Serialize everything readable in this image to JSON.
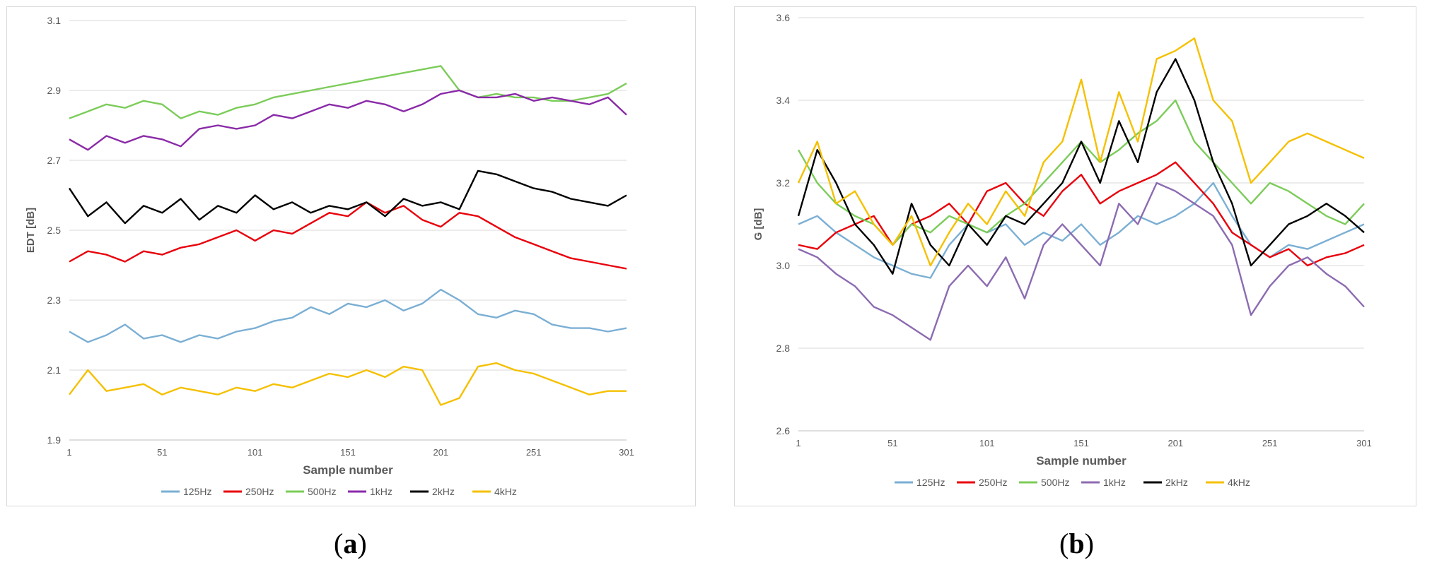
{
  "chart_data": [
    {
      "type": "line",
      "panel_label": "a",
      "title": "",
      "xlabel": "Sample number",
      "ylabel": "EDT  [dB]",
      "xlim": [
        1,
        301
      ],
      "ylim": [
        1.9,
        3.1
      ],
      "xticks": [
        1,
        51,
        101,
        151,
        201,
        251,
        301
      ],
      "yticks": [
        1.9,
        2.1,
        2.3,
        2.5,
        2.7,
        2.9,
        3.1
      ],
      "ytick_labels": [
        "1.9",
        "2.1",
        "2.3",
        "2.5",
        "2.7",
        "2.9",
        "3.1"
      ],
      "grid": "horizontal",
      "legend": "bottom",
      "series": [
        {
          "name": "125Hz",
          "color": "#7bafd4",
          "x": [
            1,
            11,
            21,
            31,
            41,
            51,
            61,
            71,
            81,
            91,
            101,
            111,
            121,
            131,
            141,
            151,
            161,
            171,
            181,
            191,
            201,
            211,
            221,
            231,
            241,
            251,
            261,
            271,
            281,
            291,
            301
          ],
          "values": [
            2.21,
            2.18,
            2.2,
            2.23,
            2.19,
            2.2,
            2.18,
            2.2,
            2.19,
            2.21,
            2.22,
            2.24,
            2.25,
            2.28,
            2.26,
            2.29,
            2.28,
            2.3,
            2.27,
            2.29,
            2.33,
            2.3,
            2.26,
            2.25,
            2.27,
            2.26,
            2.23,
            2.22,
            2.22,
            2.21,
            2.22
          ]
        },
        {
          "name": "250Hz",
          "color": "#e8000b",
          "x": [
            1,
            11,
            21,
            31,
            41,
            51,
            61,
            71,
            81,
            91,
            101,
            111,
            121,
            131,
            141,
            151,
            161,
            171,
            181,
            191,
            201,
            211,
            221,
            231,
            241,
            251,
            261,
            271,
            281,
            291,
            301
          ],
          "values": [
            2.41,
            2.44,
            2.43,
            2.41,
            2.44,
            2.43,
            2.45,
            2.46,
            2.48,
            2.5,
            2.47,
            2.5,
            2.49,
            2.52,
            2.55,
            2.54,
            2.58,
            2.55,
            2.57,
            2.53,
            2.51,
            2.55,
            2.54,
            2.51,
            2.48,
            2.46,
            2.44,
            2.42,
            2.41,
            2.4,
            2.39
          ]
        },
        {
          "name": "500Hz",
          "color": "#7ccc5a",
          "x": [
            1,
            11,
            21,
            31,
            41,
            51,
            61,
            71,
            81,
            91,
            101,
            111,
            121,
            131,
            141,
            151,
            161,
            171,
            181,
            191,
            201,
            211,
            221,
            231,
            241,
            251,
            261,
            271,
            281,
            291,
            301
          ],
          "values": [
            2.82,
            2.84,
            2.86,
            2.85,
            2.87,
            2.86,
            2.82,
            2.84,
            2.83,
            2.85,
            2.86,
            2.88,
            2.89,
            2.9,
            2.91,
            2.92,
            2.93,
            2.94,
            2.95,
            2.96,
            2.97,
            2.9,
            2.88,
            2.89,
            2.88,
            2.88,
            2.87,
            2.87,
            2.88,
            2.89,
            2.92
          ]
        },
        {
          "name": "1kHz",
          "color": "#8a2aa8",
          "x": [
            1,
            11,
            21,
            31,
            41,
            51,
            61,
            71,
            81,
            91,
            101,
            111,
            121,
            131,
            141,
            151,
            161,
            171,
            181,
            191,
            201,
            211,
            221,
            231,
            241,
            251,
            261,
            271,
            281,
            291,
            301
          ],
          "values": [
            2.76,
            2.73,
            2.77,
            2.75,
            2.77,
            2.76,
            2.74,
            2.79,
            2.8,
            2.79,
            2.8,
            2.83,
            2.82,
            2.84,
            2.86,
            2.85,
            2.87,
            2.86,
            2.84,
            2.86,
            2.89,
            2.9,
            2.88,
            2.88,
            2.89,
            2.87,
            2.88,
            2.87,
            2.86,
            2.88,
            2.83
          ]
        },
        {
          "name": "2kHz",
          "color": "#000000",
          "x": [
            1,
            11,
            21,
            31,
            41,
            51,
            61,
            71,
            81,
            91,
            101,
            111,
            121,
            131,
            141,
            151,
            161,
            171,
            181,
            191,
            201,
            211,
            221,
            231,
            241,
            251,
            261,
            271,
            281,
            291,
            301
          ],
          "values": [
            2.62,
            2.54,
            2.58,
            2.52,
            2.57,
            2.55,
            2.59,
            2.53,
            2.57,
            2.55,
            2.6,
            2.56,
            2.58,
            2.55,
            2.57,
            2.56,
            2.58,
            2.54,
            2.59,
            2.57,
            2.58,
            2.56,
            2.67,
            2.66,
            2.64,
            2.62,
            2.61,
            2.59,
            2.58,
            2.57,
            2.6
          ]
        },
        {
          "name": "4kHz",
          "color": "#f5c000",
          "x": [
            1,
            11,
            21,
            31,
            41,
            51,
            61,
            71,
            81,
            91,
            101,
            111,
            121,
            131,
            141,
            151,
            161,
            171,
            181,
            191,
            201,
            211,
            221,
            231,
            241,
            251,
            261,
            271,
            281,
            291,
            301
          ],
          "values": [
            2.03,
            2.1,
            2.04,
            2.05,
            2.06,
            2.03,
            2.05,
            2.04,
            2.03,
            2.05,
            2.04,
            2.06,
            2.05,
            2.07,
            2.09,
            2.08,
            2.1,
            2.08,
            2.11,
            2.1,
            2.0,
            2.02,
            2.11,
            2.12,
            2.1,
            2.09,
            2.07,
            2.05,
            2.03,
            2.04,
            2.04
          ]
        }
      ]
    },
    {
      "type": "line",
      "panel_label": "b",
      "title": "",
      "xlabel": "Sample number",
      "ylabel": "G  [dB]",
      "xlim": [
        1,
        301
      ],
      "ylim": [
        2.6,
        3.6
      ],
      "xticks": [
        1,
        51,
        101,
        151,
        201,
        251,
        301
      ],
      "yticks": [
        2.6,
        2.8,
        3.0,
        3.2,
        3.4,
        3.6
      ],
      "ytick_labels": [
        "2.6",
        "2.8",
        "3.0",
        "3.2",
        "3.4",
        "3.6"
      ],
      "grid": "horizontal",
      "legend": "bottom",
      "series": [
        {
          "name": "125Hz",
          "color": "#7bafd4",
          "x": [
            1,
            11,
            21,
            31,
            41,
            51,
            61,
            71,
            81,
            91,
            101,
            111,
            121,
            131,
            141,
            151,
            161,
            171,
            181,
            191,
            201,
            211,
            221,
            231,
            241,
            251,
            261,
            271,
            281,
            291,
            301
          ],
          "values": [
            3.1,
            3.12,
            3.08,
            3.05,
            3.02,
            3.0,
            2.98,
            2.97,
            3.05,
            3.1,
            3.08,
            3.1,
            3.05,
            3.08,
            3.06,
            3.1,
            3.05,
            3.08,
            3.12,
            3.1,
            3.12,
            3.15,
            3.2,
            3.12,
            3.05,
            3.02,
            3.05,
            3.04,
            3.06,
            3.08,
            3.1
          ]
        },
        {
          "name": "250Hz",
          "color": "#e8000b",
          "x": [
            1,
            11,
            21,
            31,
            41,
            51,
            61,
            71,
            81,
            91,
            101,
            111,
            121,
            131,
            141,
            151,
            161,
            171,
            181,
            191,
            201,
            211,
            221,
            231,
            241,
            251,
            261,
            271,
            281,
            291,
            301
          ],
          "values": [
            3.05,
            3.04,
            3.08,
            3.1,
            3.12,
            3.05,
            3.1,
            3.12,
            3.15,
            3.1,
            3.18,
            3.2,
            3.15,
            3.12,
            3.18,
            3.22,
            3.15,
            3.18,
            3.2,
            3.22,
            3.25,
            3.2,
            3.15,
            3.08,
            3.05,
            3.02,
            3.04,
            3.0,
            3.02,
            3.03,
            3.05
          ]
        },
        {
          "name": "500Hz",
          "color": "#7ccc5a",
          "x": [
            1,
            11,
            21,
            31,
            41,
            51,
            61,
            71,
            81,
            91,
            101,
            111,
            121,
            131,
            141,
            151,
            161,
            171,
            181,
            191,
            201,
            211,
            221,
            231,
            241,
            251,
            261,
            271,
            281,
            291,
            301
          ],
          "values": [
            3.28,
            3.2,
            3.15,
            3.12,
            3.1,
            3.05,
            3.1,
            3.08,
            3.12,
            3.1,
            3.08,
            3.12,
            3.15,
            3.2,
            3.25,
            3.3,
            3.25,
            3.28,
            3.32,
            3.35,
            3.4,
            3.3,
            3.25,
            3.2,
            3.15,
            3.2,
            3.18,
            3.15,
            3.12,
            3.1,
            3.15
          ]
        },
        {
          "name": "1kHz",
          "color": "#8c6bb1",
          "x": [
            1,
            11,
            21,
            31,
            41,
            51,
            61,
            71,
            81,
            91,
            101,
            111,
            121,
            131,
            141,
            151,
            161,
            171,
            181,
            191,
            201,
            211,
            221,
            231,
            241,
            251,
            261,
            271,
            281,
            291,
            301
          ],
          "values": [
            3.04,
            3.02,
            2.98,
            2.95,
            2.9,
            2.88,
            2.85,
            2.82,
            2.95,
            3.0,
            2.95,
            3.02,
            2.92,
            3.05,
            3.1,
            3.05,
            3.0,
            3.15,
            3.1,
            3.2,
            3.18,
            3.15,
            3.12,
            3.05,
            2.88,
            2.95,
            3.0,
            3.02,
            2.98,
            2.95,
            2.9
          ]
        },
        {
          "name": "2kHz",
          "color": "#000000",
          "x": [
            1,
            11,
            21,
            31,
            41,
            51,
            61,
            71,
            81,
            91,
            101,
            111,
            121,
            131,
            141,
            151,
            161,
            171,
            181,
            191,
            201,
            211,
            221,
            231,
            241,
            251,
            261,
            271,
            281,
            291,
            301
          ],
          "values": [
            3.12,
            3.28,
            3.2,
            3.1,
            3.05,
            2.98,
            3.15,
            3.05,
            3.0,
            3.1,
            3.05,
            3.12,
            3.1,
            3.15,
            3.2,
            3.3,
            3.2,
            3.35,
            3.25,
            3.42,
            3.5,
            3.4,
            3.25,
            3.15,
            3.0,
            3.05,
            3.1,
            3.12,
            3.15,
            3.12,
            3.08
          ]
        },
        {
          "name": "4kHz",
          "color": "#f5c000",
          "x": [
            1,
            11,
            21,
            31,
            41,
            51,
            61,
            71,
            81,
            91,
            101,
            111,
            121,
            131,
            141,
            151,
            161,
            171,
            181,
            191,
            201,
            211,
            221,
            231,
            241,
            251,
            261,
            271,
            281,
            291,
            301
          ],
          "values": [
            3.2,
            3.3,
            3.15,
            3.18,
            3.1,
            3.05,
            3.12,
            3.0,
            3.08,
            3.15,
            3.1,
            3.18,
            3.12,
            3.25,
            3.3,
            3.45,
            3.25,
            3.42,
            3.3,
            3.5,
            3.52,
            3.55,
            3.4,
            3.35,
            3.2,
            3.25,
            3.3,
            3.32,
            3.3,
            3.28,
            3.26
          ]
        }
      ]
    }
  ]
}
